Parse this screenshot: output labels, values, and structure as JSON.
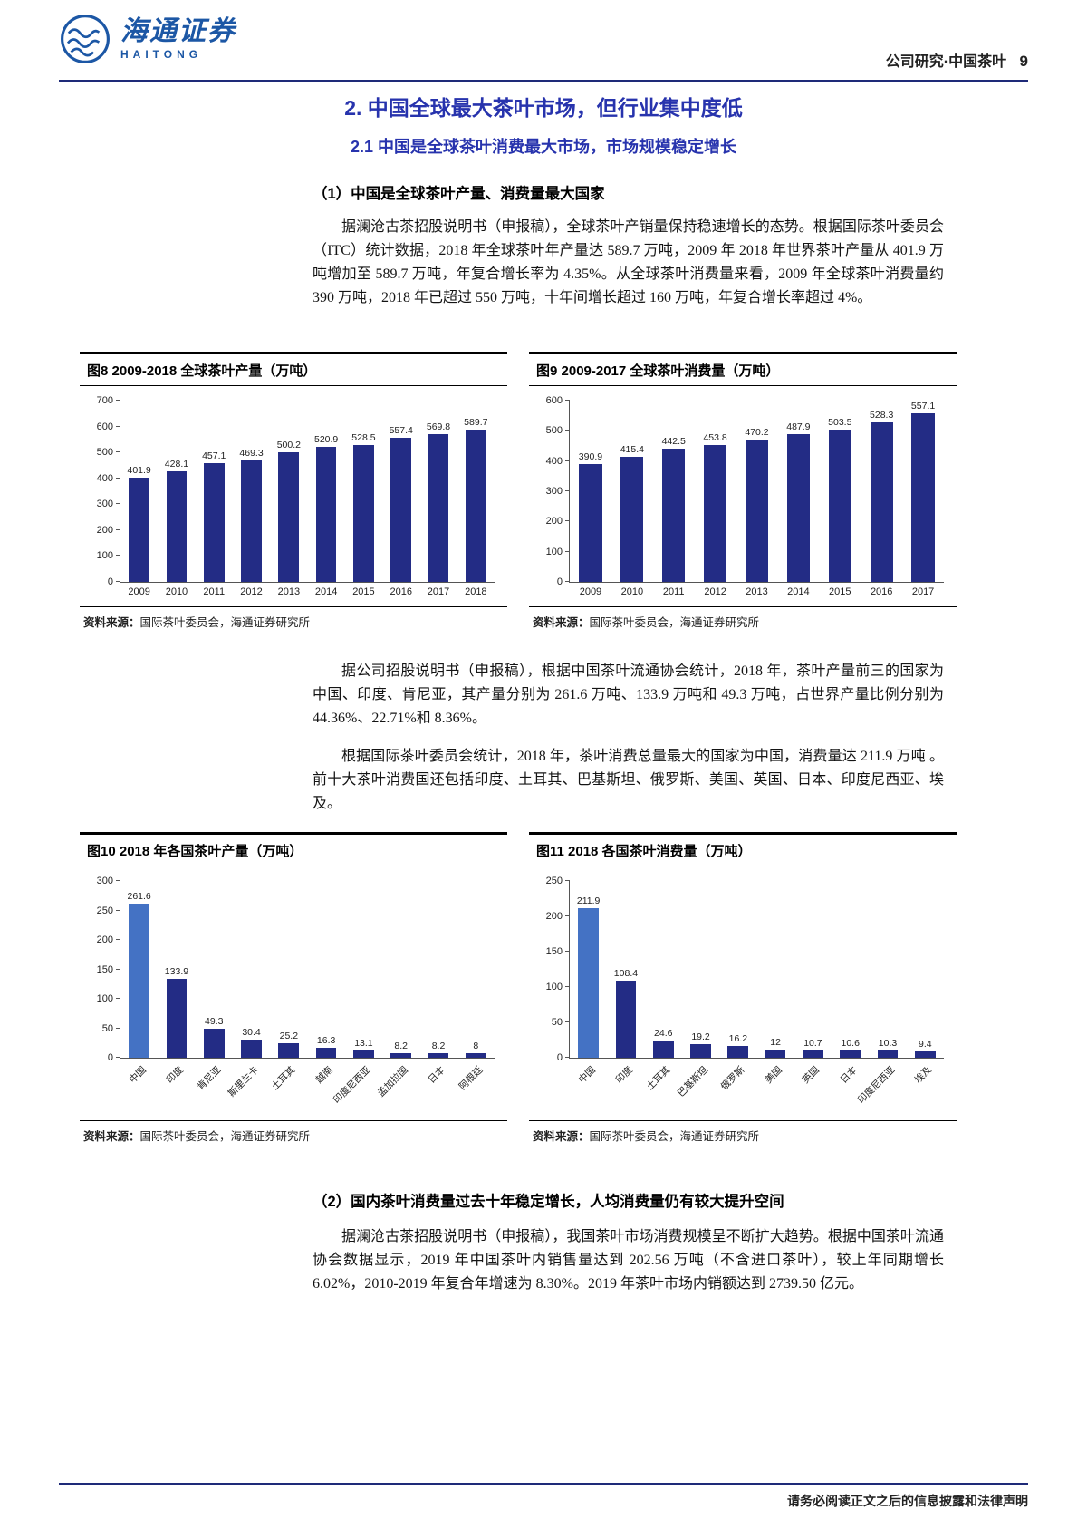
{
  "page": {
    "brand": {
      "logo_cn": "海通证券",
      "logo_en": "HAITONG"
    },
    "header_right": {
      "category": "公司研究·中国茶叶",
      "page_num": "9"
    },
    "footer": "请务必阅读正文之后的信息披露和法律声明"
  },
  "content": {
    "title": "2. 中国全球最大茶叶市场，但行业集中度低",
    "subtitle": "2.1 中国是全球茶叶消费最大市场，市场规模稳定增长",
    "section1_heading": "（1）中国是全球茶叶产量、消费量最大国家",
    "para1": "据澜沧古茶招股说明书（申报稿），全球茶叶产销量保持稳速增长的态势。根据国际茶叶委员会（ITC）统计数据，2018 年全球茶叶年产量达 589.7 万吨，2009 年 2018 年世界茶叶产量从 401.9 万吨增加至 589.7 万吨，年复合增长率为 4.35%。从全球茶叶消费量来看，2009 年全球茶叶消费量约 390 万吨，2018 年已超过 550 万吨，十年间增长超过 160 万吨，年复合增长率超过 4%。",
    "para2": "据公司招股说明书（申报稿），根据中国茶叶流通协会统计，2018 年，茶叶产量前三的国家为中国、印度、肯尼亚，其产量分别为 261.6 万吨、133.9 万吨和 49.3 万吨，占世界产量比例分别为 44.36%、22.71%和 8.36%。",
    "para3": "根据国际茶叶委员会统计，2018 年，茶叶消费总量最大的国家为中国，消费量达 211.9 万吨 。前十大茶叶消费国还包括印度、土耳其、巴基斯坦、俄罗斯、美国、英国、日本、印度尼西亚、埃及。",
    "section2_heading": "（2）国内茶叶消费量过去十年稳定增长，人均消费量仍有较大提升空间",
    "para4": "据澜沧古茶招股说明书（申报稿），我国茶叶市场消费规模呈不断扩大趋势。根据中国茶叶流通协会数据显示，2019 年中国茶叶内销售量达到 202.56 万吨（不含进口茶叶），较上年同期增长 6.02%，2010-2019 年复合年增速为 8.30%。2019 年茶叶市场内销额达到 2739.50 亿元。"
  },
  "colors": {
    "bar": "#232c85",
    "highlight": "#4472c4",
    "title_blue": "#2733ad",
    "logo_blue": "#1c57a5",
    "rule_navy": "#1e2a78"
  },
  "chart_data": [
    {
      "type": "bar",
      "title": "图8  2009-2018 全球茶叶产量（万吨）",
      "categories": [
        "2009",
        "2010",
        "2011",
        "2012",
        "2013",
        "2014",
        "2015",
        "2016",
        "2017",
        "2018"
      ],
      "values": [
        401.9,
        428.1,
        457.1,
        469.3,
        500.2,
        520.9,
        528.5,
        557.4,
        569.8,
        589.7
      ],
      "xlabel": "",
      "ylabel": "",
      "ylim": [
        0,
        700
      ],
      "ystep": 100,
      "grid": false,
      "legend": "none",
      "rotate_labels": false,
      "highlight_first": false,
      "source_label": "资料来源：",
      "source": "国际茶叶委员会，海通证券研究所"
    },
    {
      "type": "bar",
      "title": "图9  2009-2017 全球茶叶消费量（万吨）",
      "categories": [
        "2009",
        "2010",
        "2011",
        "2012",
        "2013",
        "2014",
        "2015",
        "2016",
        "2017"
      ],
      "values": [
        390.9,
        415.4,
        442.5,
        453.8,
        470.2,
        487.9,
        503.5,
        528.3,
        557.1
      ],
      "xlabel": "",
      "ylabel": "",
      "ylim": [
        0,
        600
      ],
      "ystep": 100,
      "grid": false,
      "legend": "none",
      "rotate_labels": false,
      "highlight_first": false,
      "source_label": "资料来源：",
      "source": "国际茶叶委员会，海通证券研究所"
    },
    {
      "type": "bar",
      "title": "图10 2018 年各国茶叶产量（万吨）",
      "categories": [
        "中国",
        "印度",
        "肯尼亚",
        "斯里兰卡",
        "土耳其",
        "越南",
        "印度尼西亚",
        "孟加拉国",
        "日本",
        "阿根廷"
      ],
      "values": [
        261.6,
        133.9,
        49.3,
        30.4,
        25.2,
        16.3,
        13.1,
        8.2,
        8.2,
        8
      ],
      "xlabel": "",
      "ylabel": "",
      "ylim": [
        0,
        300
      ],
      "ystep": 50,
      "grid": false,
      "legend": "none",
      "rotate_labels": true,
      "highlight_first": true,
      "source_label": "资料来源：",
      "source": "国际茶叶委员会，海通证券研究所"
    },
    {
      "type": "bar",
      "title": "图11 2018 各国茶叶消费量（万吨）",
      "categories": [
        "中国",
        "印度",
        "土耳其",
        "巴基斯坦",
        "俄罗斯",
        "美国",
        "英国",
        "日本",
        "印度尼西亚",
        "埃及"
      ],
      "values": [
        211.9,
        108.4,
        24.6,
        19.2,
        16.2,
        12,
        10.7,
        10.6,
        10.3,
        9.4
      ],
      "xlabel": "",
      "ylabel": "",
      "ylim": [
        0,
        250
      ],
      "ystep": 50,
      "grid": false,
      "legend": "none",
      "rotate_labels": true,
      "highlight_first": true,
      "source_label": "资料来源：",
      "source": "国际茶叶委员会，海通证券研究所"
    }
  ]
}
